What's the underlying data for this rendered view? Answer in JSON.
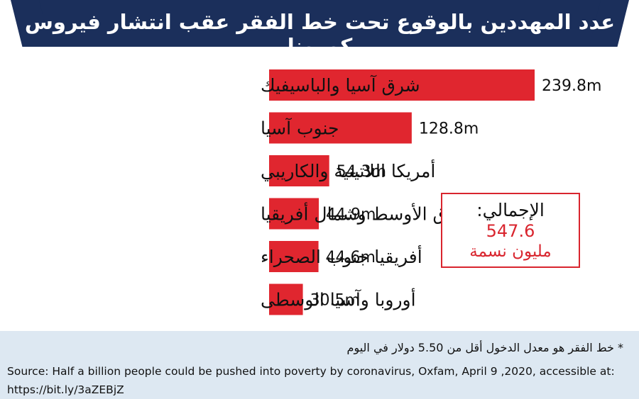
{
  "title": "عدد المهددين بالوقوع تحت خط الفقر عقب انتشار فيروس كورونا",
  "chart_data": {
    "type": "bar",
    "orientation": "horizontal",
    "title": "عدد المهددين بالوقوع تحت خط الفقر عقب انتشار فيروس كورونا",
    "categories": [
      "شرق آسيا والباسيفيك",
      "جنوب آسيا",
      "أمريكا اللاتينية والكاريبي",
      "الشرق الأوسط وشمال أفريقيا",
      "أفريقيا جنوب الصحراء",
      "أوروبا وآسيا الوسطى"
    ],
    "values": [
      239.8,
      128.8,
      54.3,
      44.9,
      44.6,
      30.5
    ],
    "value_labels": [
      "239.8m",
      "128.8m",
      "54.3m",
      "44.9m",
      "44.6m",
      "30.5m"
    ],
    "unit": "m",
    "bar_color": "#e0262f",
    "xlim": [
      0,
      239.8
    ],
    "grid": false
  },
  "total": {
    "label": "الإجمالي:",
    "value": "547.6",
    "unit": "مليون نسمة"
  },
  "footer": {
    "note": "* خط الفقر هو معدل الدخول أقل من 5.50 دولار في اليوم",
    "source": "Source: Half a billion people could be pushed into poverty by coronavirus, Oxfam, April 9 ,2020, accessible at: https://bit.ly/3aZEBjZ"
  },
  "colors": {
    "banner": "#1b2f5b",
    "accent": "#d9252e",
    "footer_bg": "#dde8f2"
  }
}
